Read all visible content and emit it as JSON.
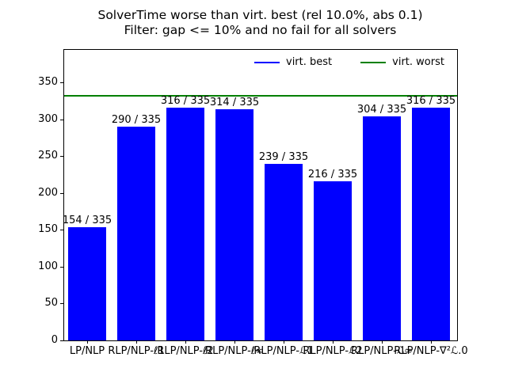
{
  "figure": {
    "title_line1": "SolverTime worse than virt. best (rel 10.0%, abs 0.1)",
    "title_line2": "Filter: gap <= 10% and no fail for all solvers"
  },
  "chart_data": {
    "type": "bar",
    "title": "SolverTime worse than virt. best (rel 10.0%, abs 0.1)",
    "subtitle": "Filter: gap <= 10% and no fail for all solvers",
    "categories": [
      "LP/NLP",
      "RLP/NLP-ℓ1",
      "RLP/NLP-ℓ2",
      "RLP/NLP-ℓ∞",
      "RLP/NLP-ℒ1",
      "RLP/NLP-ℒ2",
      "RLP/NLP-ℒ∞",
      "RLP/NLP-∇²ℒ.0"
    ],
    "values": [
      154,
      290,
      316,
      314,
      239,
      216,
      304,
      316
    ],
    "total": 335,
    "annotations": [
      "154 / 335",
      "290 / 335",
      "316 / 335",
      "314 / 335",
      "239 / 335",
      "216 / 335",
      "304 / 335",
      "316 / 335"
    ],
    "bar_color": "#0000ff",
    "yticks": [
      0,
      50,
      100,
      150,
      200,
      250,
      300,
      350
    ],
    "ylim": [
      0,
      394
    ],
    "grid": false,
    "legend": {
      "position": "upper center",
      "entries": [
        {
          "label": "virt. best",
          "color": "#0000ff",
          "type": "line"
        },
        {
          "label": "virt. worst",
          "color": "#008000",
          "type": "line"
        }
      ]
    },
    "hline": {
      "value": 333,
      "color": "#008000",
      "name": "virt. worst"
    }
  }
}
